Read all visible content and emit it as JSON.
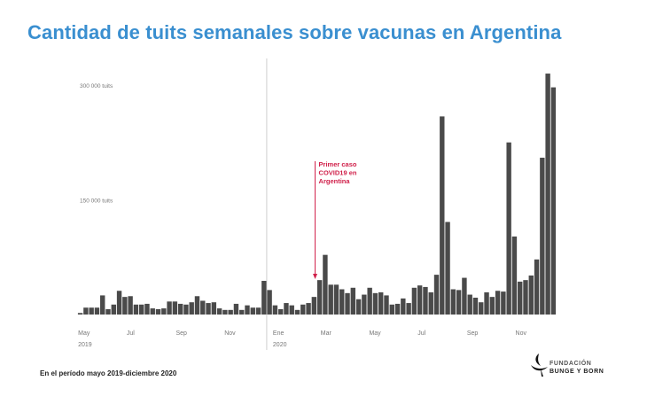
{
  "title": "Cantidad de tuits semanales sobre vacunas en Argentina",
  "footnote": "En el período mayo 2019-diciembre 2020",
  "logo": {
    "line1": "FUNDACIÓN",
    "line2": "BUNGE Y BORN"
  },
  "colors": {
    "title": "#3a8fd0",
    "bar": "#4a4a4a",
    "annotation": "#d0204a",
    "axis_text": "#777777"
  },
  "chart_data": {
    "type": "bar",
    "title": "Cantidad de tuits semanales sobre vacunas en Argentina",
    "xlabel": "",
    "ylabel": "",
    "ylim": [
      0,
      315000
    ],
    "grid": false,
    "y_ticks": [
      {
        "value": 150000,
        "label": "150 000 tuits"
      },
      {
        "value": 300000,
        "label": "300 000 tuits"
      }
    ],
    "x_ticks": [
      {
        "date": "2019-05-01",
        "label": "May",
        "year": "2019"
      },
      {
        "date": "2019-07-01",
        "label": "Jul"
      },
      {
        "date": "2019-09-01",
        "label": "Sep"
      },
      {
        "date": "2019-11-01",
        "label": "Nov"
      },
      {
        "date": "2020-01-01",
        "label": "Ene",
        "year": "2020"
      },
      {
        "date": "2020-03-01",
        "label": "Mar"
      },
      {
        "date": "2020-05-01",
        "label": "May"
      },
      {
        "date": "2020-07-01",
        "label": "Jul"
      },
      {
        "date": "2020-09-01",
        "label": "Sep"
      },
      {
        "date": "2020-11-01",
        "label": "Nov"
      }
    ],
    "annotation": {
      "date": "2020-03-03",
      "lines": [
        "Primer caso",
        "COVID19 en",
        "Argentina"
      ]
    },
    "x": [
      "2019-05-06",
      "2019-05-13",
      "2019-05-20",
      "2019-05-27",
      "2019-06-03",
      "2019-06-10",
      "2019-06-17",
      "2019-06-24",
      "2019-07-01",
      "2019-07-08",
      "2019-07-15",
      "2019-07-22",
      "2019-07-29",
      "2019-08-05",
      "2019-08-12",
      "2019-08-19",
      "2019-08-26",
      "2019-09-02",
      "2019-09-09",
      "2019-09-16",
      "2019-09-23",
      "2019-09-30",
      "2019-10-07",
      "2019-10-14",
      "2019-10-21",
      "2019-10-28",
      "2019-11-04",
      "2019-11-11",
      "2019-11-18",
      "2019-11-25",
      "2019-12-02",
      "2019-12-09",
      "2019-12-16",
      "2019-12-23",
      "2019-12-30",
      "2020-01-06",
      "2020-01-13",
      "2020-01-20",
      "2020-01-27",
      "2020-02-03",
      "2020-02-10",
      "2020-02-17",
      "2020-02-24",
      "2020-03-02",
      "2020-03-09",
      "2020-03-16",
      "2020-03-23",
      "2020-03-30",
      "2020-04-06",
      "2020-04-13",
      "2020-04-20",
      "2020-04-27",
      "2020-05-04",
      "2020-05-11",
      "2020-05-18",
      "2020-05-25",
      "2020-06-01",
      "2020-06-08",
      "2020-06-15",
      "2020-06-22",
      "2020-06-29",
      "2020-07-06",
      "2020-07-13",
      "2020-07-20",
      "2020-07-27",
      "2020-08-03",
      "2020-08-10",
      "2020-08-17",
      "2020-08-24",
      "2020-08-31",
      "2020-09-07",
      "2020-09-14",
      "2020-09-21",
      "2020-09-28",
      "2020-10-05",
      "2020-10-12",
      "2020-10-19",
      "2020-10-26",
      "2020-11-02",
      "2020-11-09",
      "2020-11-16",
      "2020-11-23",
      "2020-11-30",
      "2020-12-07",
      "2020-12-14",
      "2020-12-21"
    ],
    "values": [
      2000,
      9000,
      9000,
      9000,
      25000,
      7000,
      13000,
      31000,
      23000,
      24000,
      13000,
      13000,
      14000,
      8000,
      7000,
      8000,
      17000,
      17000,
      14000,
      13000,
      16000,
      24000,
      18000,
      15000,
      16000,
      8000,
      6000,
      6000,
      14000,
      6000,
      12000,
      9000,
      9000,
      44000,
      32000,
      12000,
      7000,
      15000,
      12000,
      6000,
      13000,
      15000,
      23000,
      45000,
      78000,
      39000,
      39000,
      33000,
      28000,
      35000,
      20000,
      26000,
      35000,
      28000,
      29000,
      25000,
      13000,
      14000,
      21000,
      15000,
      35000,
      38000,
      36000,
      29000,
      52000,
      259000,
      121000,
      33000,
      32000,
      48000,
      26000,
      22000,
      16000,
      29000,
      23000,
      31000,
      30000,
      225000,
      102000,
      43000,
      45000,
      51000,
      72000,
      205000,
      315000,
      297000
    ]
  }
}
